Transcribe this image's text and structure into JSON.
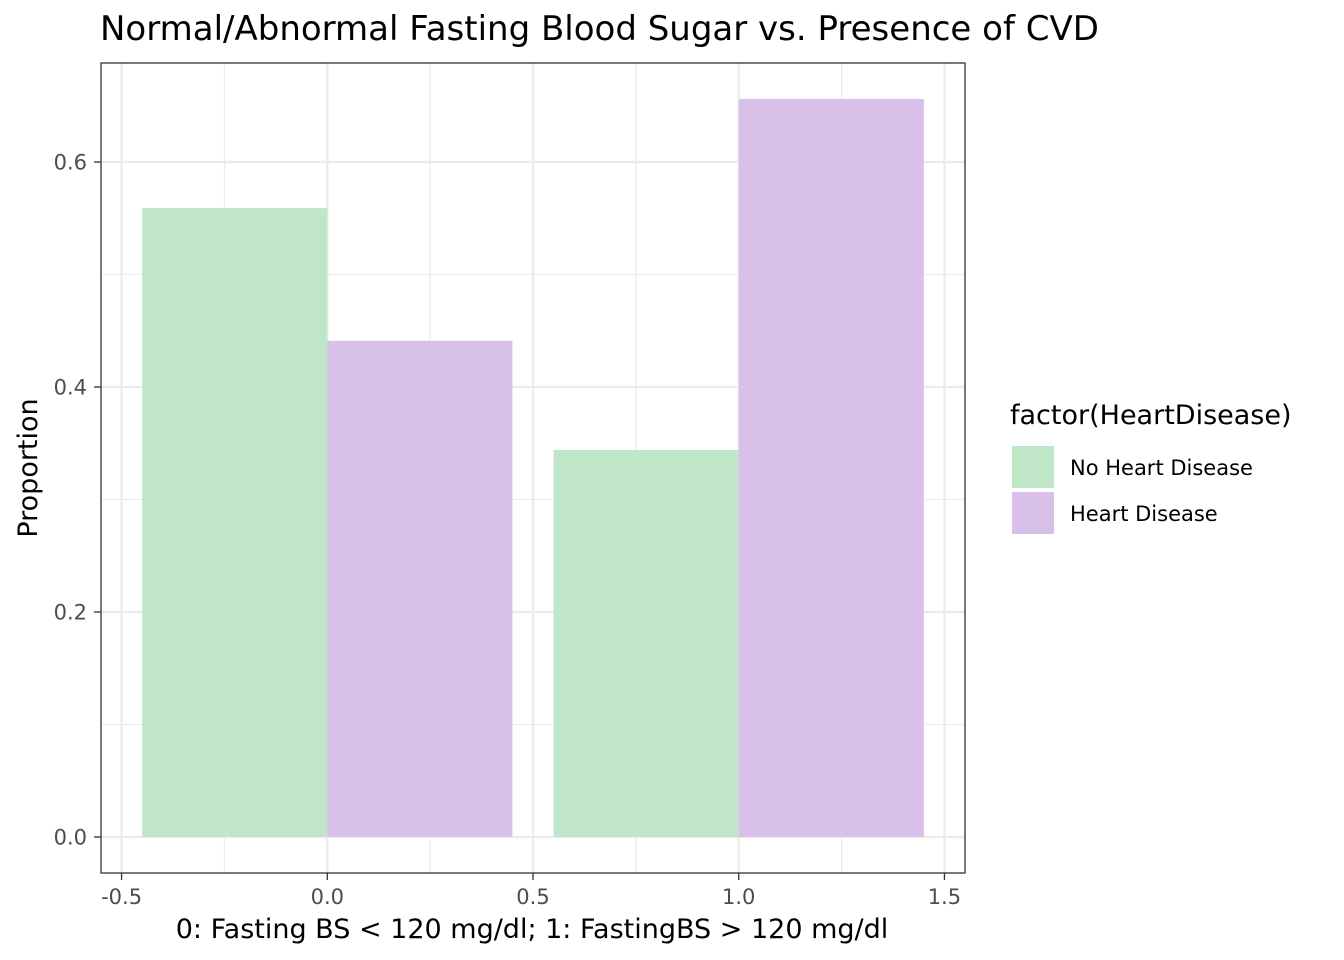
{
  "chart_data": {
    "type": "bar",
    "title": "Normal/Abnormal Fasting Blood Sugar vs. Presence of CVD",
    "xlabel": "0: Fasting BS < 120 mg/dl; 1: FastingBS > 120 mg/dl",
    "ylabel": "Proportion",
    "categories": [
      0,
      1
    ],
    "bar_width": 0.9,
    "xlim": [
      -0.55,
      1.55
    ],
    "ylim": [
      -0.032,
      0.688
    ],
    "x_ticks": [
      -0.5,
      0.0,
      0.5,
      1.0,
      1.5
    ],
    "x_tick_labels": [
      "-0.5",
      "0.0",
      "0.5",
      "1.0",
      "1.5"
    ],
    "y_ticks": [
      0.0,
      0.2,
      0.4,
      0.6
    ],
    "y_tick_labels": [
      "0.0",
      "0.2",
      "0.4",
      "0.6"
    ],
    "grid": true,
    "legend_placement": "right",
    "legend_title": "factor(HeartDisease)",
    "series": [
      {
        "name": "No Heart Disease",
        "color": "#c0e6c8",
        "values": [
          0.559,
          0.344
        ]
      },
      {
        "name": "Heart Disease",
        "color": "#d8c0e8",
        "values": [
          0.441,
          0.656
        ]
      }
    ]
  }
}
